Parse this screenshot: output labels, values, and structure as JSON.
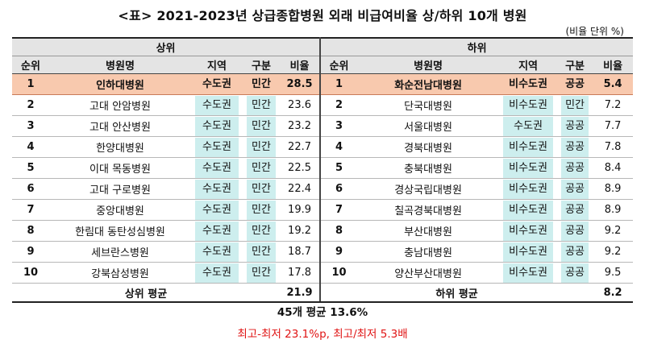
{
  "title": "<표> 2021-2023년 상급종합병원 외래 비급여비율 상/하위 10개 병원",
  "unit_note": "(비율 단위 %)",
  "groups": {
    "upper": "상위",
    "lower": "하위"
  },
  "columns": {
    "rank": "순위",
    "name": "병원명",
    "region": "지역",
    "type": "구분",
    "ratio": "비율"
  },
  "upper_rows": [
    {
      "rank": "1",
      "name": "인하대병원",
      "region": "수도권",
      "type": "민간",
      "ratio": "28.5"
    },
    {
      "rank": "2",
      "name": "고대 안암병원",
      "region": "수도권",
      "type": "민간",
      "ratio": "23.6"
    },
    {
      "rank": "3",
      "name": "고대 안산병원",
      "region": "수도권",
      "type": "민간",
      "ratio": "23.2"
    },
    {
      "rank": "4",
      "name": "한양대병원",
      "region": "수도권",
      "type": "민간",
      "ratio": "22.7"
    },
    {
      "rank": "5",
      "name": "이대 목동병원",
      "region": "수도권",
      "type": "민간",
      "ratio": "22.5"
    },
    {
      "rank": "6",
      "name": "고대 구로병원",
      "region": "수도권",
      "type": "민간",
      "ratio": "22.4"
    },
    {
      "rank": "7",
      "name": "중앙대병원",
      "region": "수도권",
      "type": "민간",
      "ratio": "19.9"
    },
    {
      "rank": "8",
      "name": "한림대 동탄성심병원",
      "region": "수도권",
      "type": "민간",
      "ratio": "19.2"
    },
    {
      "rank": "9",
      "name": "세브란스병원",
      "region": "수도권",
      "type": "민간",
      "ratio": "18.7"
    },
    {
      "rank": "10",
      "name": "강북삼성병원",
      "region": "수도권",
      "type": "민간",
      "ratio": "17.8"
    }
  ],
  "lower_rows": [
    {
      "rank": "1",
      "name": "화순전남대병원",
      "region": "비수도권",
      "type": "공공",
      "ratio": "5.4"
    },
    {
      "rank": "2",
      "name": "단국대병원",
      "region": "비수도권",
      "type": "민간",
      "ratio": "7.2"
    },
    {
      "rank": "3",
      "name": "서울대병원",
      "region": "수도권",
      "type": "공공",
      "ratio": "7.7"
    },
    {
      "rank": "4",
      "name": "경북대병원",
      "region": "비수도권",
      "type": "공공",
      "ratio": "7.8"
    },
    {
      "rank": "5",
      "name": "충북대병원",
      "region": "비수도권",
      "type": "공공",
      "ratio": "8.4"
    },
    {
      "rank": "6",
      "name": "경상국립대병원",
      "region": "비수도권",
      "type": "공공",
      "ratio": "8.9"
    },
    {
      "rank": "7",
      "name": "칠곡경북대병원",
      "region": "비수도권",
      "type": "공공",
      "ratio": "8.9"
    },
    {
      "rank": "8",
      "name": "부산대병원",
      "region": "비수도권",
      "type": "공공",
      "ratio": "9.2"
    },
    {
      "rank": "9",
      "name": "충남대병원",
      "region": "비수도권",
      "type": "공공",
      "ratio": "9.2"
    },
    {
      "rank": "10",
      "name": "양산부산대병원",
      "region": "비수도권",
      "type": "공공",
      "ratio": "9.5"
    }
  ],
  "averages": {
    "upper_label": "상위 평균",
    "upper_value": "21.9",
    "lower_label": "하위 평균",
    "lower_value": "8.2"
  },
  "overall": "45개 평균 13.6%",
  "comparison": "최고-최저 23.1%p, 최고/최저 5.3배",
  "colors": {
    "highlight_row": "#f8c9ae",
    "tag_fill": "#cdeeee",
    "header_fill": "#e4e4e4",
    "comparison_text": "#e01414"
  }
}
